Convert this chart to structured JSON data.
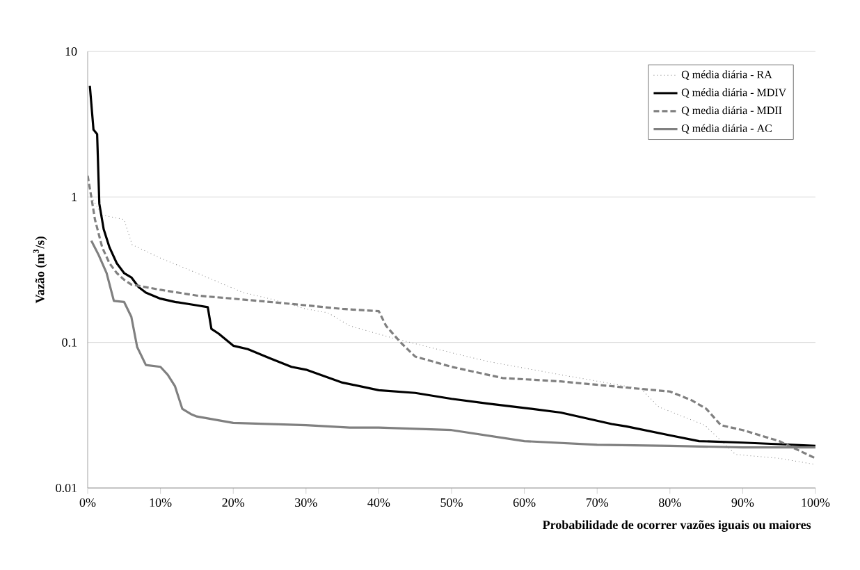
{
  "chart_data": {
    "type": "line",
    "xlabel": "Probabilidade de ocorrer vazões iguais ou maiores",
    "ylabel": "Vazão (m$^{3}$/s)",
    "log": "y",
    "grid": "y",
    "legend": "top right",
    "marker": "none",
    "xlim": [
      0,
      100
    ],
    "ylim": [
      0.01,
      10
    ],
    "xticks": [
      {
        "value": 0,
        "label": "0%"
      },
      {
        "value": 10,
        "label": "10%"
      },
      {
        "value": 20,
        "label": "20%"
      },
      {
        "value": 30,
        "label": "30%"
      },
      {
        "value": 40,
        "label": "40%"
      },
      {
        "value": 50,
        "label": "50%"
      },
      {
        "value": 60,
        "label": "60%"
      },
      {
        "value": 70,
        "label": "70%"
      },
      {
        "value": 80,
        "label": "80%"
      },
      {
        "value": 90,
        "label": "90%"
      },
      {
        "value": 100,
        "label": "100%"
      }
    ],
    "yticks": [
      0.01,
      0.1,
      1,
      10
    ],
    "series": [
      {
        "name": "Q média diária - RA",
        "color": "#808080",
        "line_style": "dotted",
        "x": [
          0.5,
          2,
          5,
          6.1,
          10,
          15,
          21.4,
          25,
          30,
          33,
          36,
          42,
          50,
          55,
          65,
          74,
          76,
          78.5,
          84.8,
          89,
          95,
          100
        ],
        "values": [
          1.0,
          0.75,
          0.7,
          0.47,
          0.38,
          0.3,
          0.22,
          0.2,
          0.17,
          0.16,
          0.13,
          0.107,
          0.085,
          0.074,
          0.06,
          0.05,
          0.048,
          0.036,
          0.027,
          0.017,
          0.016,
          0.0145
        ]
      },
      {
        "name": "Q média diária - MDIV",
        "color": "#000000",
        "line_style": "solid",
        "x": [
          0.3,
          0.8,
          1.3,
          1.6,
          2.2,
          3,
          4,
          5,
          6,
          7,
          8,
          10,
          12,
          15,
          16.5,
          17,
          18,
          20,
          22,
          25,
          28,
          30,
          35,
          40,
          45,
          50,
          55,
          61,
          65,
          72,
          74,
          80,
          84,
          90,
          95,
          100
        ],
        "values": [
          5.8,
          2.9,
          2.7,
          0.9,
          0.6,
          0.45,
          0.35,
          0.3,
          0.28,
          0.24,
          0.22,
          0.2,
          0.19,
          0.18,
          0.175,
          0.124,
          0.115,
          0.095,
          0.09,
          0.078,
          0.068,
          0.065,
          0.053,
          0.047,
          0.045,
          0.041,
          0.038,
          0.035,
          0.033,
          0.0275,
          0.0265,
          0.023,
          0.021,
          0.0205,
          0.02,
          0.0195
        ]
      },
      {
        "name": "Q media diária - MDII",
        "color": "#808080",
        "line_style": "dashed",
        "x": [
          0,
          0.5,
          1,
          2,
          3,
          4,
          5,
          6,
          8,
          10,
          15,
          20,
          25,
          30,
          35,
          40,
          41,
          43,
          45,
          50,
          57,
          65,
          74,
          80,
          83,
          85,
          87,
          90,
          95,
          100
        ],
        "values": [
          1.4,
          1.0,
          0.7,
          0.45,
          0.35,
          0.3,
          0.27,
          0.25,
          0.24,
          0.23,
          0.21,
          0.2,
          0.19,
          0.18,
          0.17,
          0.164,
          0.13,
          0.1,
          0.08,
          0.068,
          0.057,
          0.054,
          0.049,
          0.046,
          0.04,
          0.035,
          0.027,
          0.025,
          0.021,
          0.016
        ]
      },
      {
        "name": "Q média diária - AC",
        "color": "#808080",
        "line_style": "solid",
        "x": [
          0.5,
          1.5,
          2.6,
          3.6,
          5,
          6,
          6.8,
          8,
          10,
          11,
          12,
          13,
          14.3,
          15,
          20,
          30,
          36,
          40,
          50,
          60,
          70,
          80,
          90,
          100
        ],
        "values": [
          0.5,
          0.4,
          0.3,
          0.193,
          0.19,
          0.15,
          0.093,
          0.07,
          0.068,
          0.06,
          0.05,
          0.035,
          0.032,
          0.031,
          0.028,
          0.027,
          0.026,
          0.026,
          0.025,
          0.021,
          0.0198,
          0.0195,
          0.019,
          0.019
        ]
      }
    ]
  }
}
